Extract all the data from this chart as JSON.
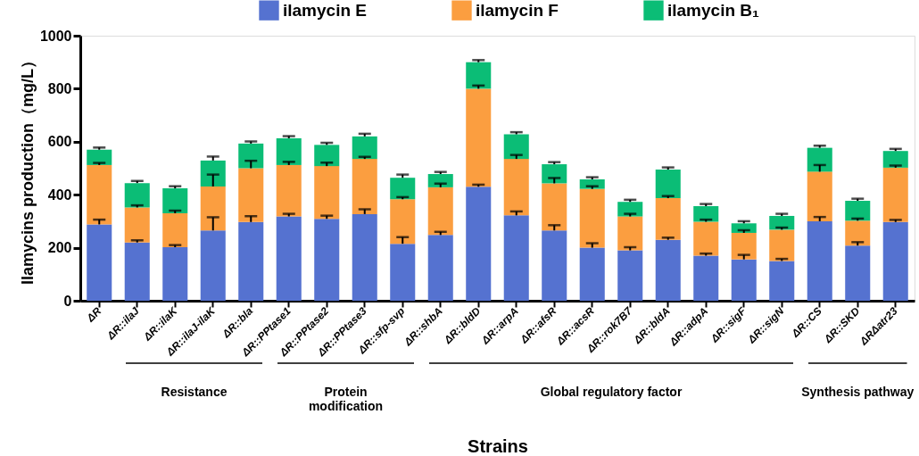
{
  "chart_data": {
    "type": "bar",
    "stacked": true,
    "ylabel": "Ilamycins production（mg/L）",
    "xlabel": "Strains",
    "categories": [
      "ΔR",
      "ΔR::ilaJ",
      "ΔR::ilaK",
      "ΔR::ilaJ-ilaK",
      "ΔR::bla",
      "ΔR::PPtase1",
      "ΔR::PPtase2",
      "ΔR::PPtase3",
      "ΔR::sfp-svp",
      "ΔR::shbA",
      "ΔR::bldD",
      "ΔR::arpA",
      "ΔR::afsR",
      "ΔR::acsR",
      "ΔR::rok7B7",
      "ΔR::bldA",
      "ΔR::adpA",
      "ΔR::sigF",
      "ΔR::sigN",
      "ΔR::CS",
      "ΔR::SKD",
      "ΔRΔatr23"
    ],
    "series": [
      {
        "name": "ilamycin E",
        "color": "#5572d0",
        "values": [
          288,
          220,
          202,
          265,
          297,
          318,
          309,
          327,
          215,
          248,
          430,
          322,
          265,
          200,
          190,
          230,
          170,
          156,
          150,
          300,
          208,
          297
        ],
        "errors": [
          18,
          8,
          8,
          50,
          22,
          10,
          12,
          18,
          25,
          12,
          8,
          15,
          20,
          17,
          12,
          8,
          8,
          17,
          8,
          16,
          13,
          8
        ]
      },
      {
        "name": "ilamycin F",
        "color": "#fb9e40",
        "values": [
          224,
          132,
          128,
          166,
          203,
          194,
          199,
          208,
          168,
          180,
          370,
          213,
          178,
          222,
          128,
          157,
          128,
          100,
          118,
          187,
          94,
          205
        ],
        "errors": [
          8,
          8,
          10,
          45,
          28,
          12,
          13,
          8,
          8,
          14,
          12,
          15,
          20,
          10,
          10,
          8,
          8,
          10,
          8,
          25,
          8,
          8
        ]
      },
      {
        "name": "ilamycin B₁",
        "color": "#0bbd76",
        "values": [
          58,
          92,
          94,
          98,
          93,
          101,
          80,
          85,
          81,
          50,
          100,
          93,
          72,
          36,
          55,
          108,
          59,
          36,
          52,
          90,
          75,
          63
        ],
        "errors": [
          8,
          8,
          8,
          15,
          8,
          8,
          8,
          10,
          12,
          8,
          8,
          8,
          8,
          8,
          8,
          8,
          8,
          8,
          8,
          8,
          8,
          8
        ]
      }
    ],
    "ylim": [
      0,
      1000
    ],
    "yticks": [
      0,
      200,
      400,
      600,
      800,
      1000
    ],
    "grid": false,
    "legend": "top",
    "annotations": [
      "Resistance",
      "Protein\nmodification",
      "Global regulatory factor",
      "Synthesis pathway"
    ]
  }
}
